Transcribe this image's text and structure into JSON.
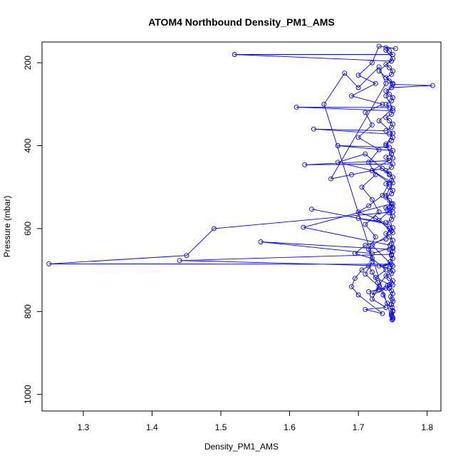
{
  "chart_data": {
    "type": "scatter",
    "title": "ATOM4 Northbound Density_PM1_AMS",
    "xlabel": "Density_PM1_AMS",
    "ylabel": "Pressure (mbar)",
    "xlim": [
      1.24,
      1.82
    ],
    "ylim": [
      1040,
      150
    ],
    "y_axis_inverted": true,
    "x_ticks": [
      "1.3",
      "1.4",
      "1.5",
      "1.6",
      "1.7",
      "1.8"
    ],
    "x_tick_values": [
      1.3,
      1.4,
      1.5,
      1.6,
      1.7,
      1.8
    ],
    "y_ticks": [
      "200",
      "400",
      "600",
      "800",
      "1000"
    ],
    "y_tick_values": [
      200,
      400,
      600,
      800,
      1000
    ],
    "grid": false,
    "style": "points connected by lines (type='o')",
    "series": [
      {
        "color": "#0000ff",
        "marker": "open-circle",
        "points": [
          [
            1.75,
            818
          ],
          [
            1.749,
            812
          ],
          [
            1.748,
            805
          ],
          [
            1.75,
            798
          ],
          [
            1.749,
            790
          ],
          [
            1.748,
            783
          ],
          [
            1.75,
            776
          ],
          [
            1.749,
            770
          ],
          [
            1.747,
            764
          ],
          [
            1.75,
            757
          ],
          [
            1.748,
            750
          ],
          [
            1.745,
            744
          ],
          [
            1.742,
            738
          ],
          [
            1.748,
            732
          ],
          [
            1.75,
            726
          ],
          [
            1.745,
            720
          ],
          [
            1.74,
            714
          ],
          [
            1.748,
            708
          ],
          [
            1.75,
            702
          ],
          [
            1.745,
            696
          ],
          [
            1.73,
            690
          ],
          [
            1.748,
            686
          ],
          [
            1.25,
            685
          ],
          [
            1.45,
            665
          ],
          [
            1.49,
            600
          ],
          [
            1.75,
            560
          ],
          [
            1.74,
            550
          ],
          [
            1.748,
            540
          ],
          [
            1.62,
            597
          ],
          [
            1.746,
            640
          ],
          [
            1.75,
            648
          ],
          [
            1.75,
            655
          ],
          [
            1.748,
            662
          ],
          [
            1.44,
            677
          ],
          [
            1.74,
            690
          ],
          [
            1.746,
            680
          ],
          [
            1.75,
            672
          ],
          [
            1.748,
            665
          ],
          [
            1.745,
            650
          ],
          [
            1.558,
            632
          ],
          [
            1.72,
            660
          ],
          [
            1.75,
            645
          ],
          [
            1.748,
            636
          ],
          [
            1.75,
            628
          ],
          [
            1.745,
            620
          ],
          [
            1.74,
            612
          ],
          [
            1.748,
            605
          ],
          [
            1.75,
            598
          ],
          [
            1.745,
            590
          ],
          [
            1.632,
            553
          ],
          [
            1.7,
            575
          ],
          [
            1.74,
            585
          ],
          [
            1.748,
            578
          ],
          [
            1.75,
            570
          ],
          [
            1.745,
            562
          ],
          [
            1.742,
            555
          ],
          [
            1.748,
            548
          ],
          [
            1.75,
            540
          ],
          [
            1.745,
            532
          ],
          [
            1.74,
            524
          ],
          [
            1.748,
            516
          ],
          [
            1.75,
            508
          ],
          [
            1.745,
            500
          ],
          [
            1.74,
            492
          ],
          [
            1.748,
            484
          ],
          [
            1.75,
            476
          ],
          [
            1.745,
            468
          ],
          [
            1.74,
            460
          ],
          [
            1.748,
            452
          ],
          [
            1.75,
            444
          ],
          [
            1.622,
            446
          ],
          [
            1.745,
            436
          ],
          [
            1.74,
            428
          ],
          [
            1.748,
            420
          ],
          [
            1.75,
            412
          ],
          [
            1.67,
            400
          ],
          [
            1.745,
            404
          ],
          [
            1.74,
            396
          ],
          [
            1.748,
            388
          ],
          [
            1.75,
            380
          ],
          [
            1.745,
            372
          ],
          [
            1.635,
            360
          ],
          [
            1.74,
            364
          ],
          [
            1.748,
            356
          ],
          [
            1.75,
            348
          ],
          [
            1.745,
            340
          ],
          [
            1.74,
            332
          ],
          [
            1.748,
            324
          ],
          [
            1.75,
            316
          ],
          [
            1.61,
            307
          ],
          [
            1.745,
            308
          ],
          [
            1.74,
            300
          ],
          [
            1.748,
            292
          ],
          [
            1.75,
            284
          ],
          [
            1.745,
            276
          ],
          [
            1.74,
            268
          ],
          [
            1.748,
            260
          ],
          [
            1.808,
            255
          ],
          [
            1.75,
            252
          ],
          [
            1.745,
            244
          ],
          [
            1.74,
            236
          ],
          [
            1.748,
            228
          ],
          [
            1.75,
            220
          ],
          [
            1.745,
            212
          ],
          [
            1.74,
            204
          ],
          [
            1.748,
            196
          ],
          [
            1.52,
            180
          ],
          [
            1.75,
            180
          ],
          [
            1.745,
            172
          ],
          [
            1.74,
            164
          ],
          [
            1.754,
            166
          ],
          [
            1.73,
            160
          ],
          [
            1.72,
            200
          ],
          [
            1.7,
            230
          ],
          [
            1.725,
            250
          ],
          [
            1.69,
            280
          ],
          [
            1.735,
            300
          ],
          [
            1.71,
            320
          ],
          [
            1.72,
            350
          ],
          [
            1.7,
            380
          ],
          [
            1.73,
            410
          ],
          [
            1.715,
            440
          ],
          [
            1.725,
            470
          ],
          [
            1.705,
            500
          ],
          [
            1.72,
            530
          ],
          [
            1.73,
            560
          ],
          [
            1.71,
            590
          ],
          [
            1.725,
            620
          ],
          [
            1.715,
            650
          ],
          [
            1.72,
            680
          ],
          [
            1.71,
            710
          ],
          [
            1.73,
            740
          ],
          [
            1.72,
            770
          ],
          [
            1.74,
            790
          ],
          [
            1.71,
            795
          ],
          [
            1.735,
            805
          ],
          [
            1.7,
            760
          ],
          [
            1.69,
            740
          ],
          [
            1.695,
            720
          ],
          [
            1.705,
            700
          ],
          [
            1.715,
            690
          ],
          [
            1.72,
            705
          ],
          [
            1.728,
            730
          ],
          [
            1.736,
            760
          ],
          [
            1.742,
            780
          ],
          [
            1.75,
            800
          ],
          [
            1.748,
            810
          ],
          [
            1.75,
            815
          ],
          [
            1.749,
            820
          ],
          [
            1.65,
            300
          ],
          [
            1.68,
            225
          ],
          [
            1.7,
            260
          ],
          [
            1.73,
            210
          ],
          [
            1.74,
            250
          ],
          [
            1.66,
            480
          ],
          [
            1.69,
            470
          ],
          [
            1.735,
            455
          ],
          [
            1.745,
            470
          ],
          [
            1.71,
            420
          ],
          [
            1.67,
            440
          ],
          [
            1.72,
            460
          ],
          [
            1.745,
            490
          ],
          [
            1.735,
            520
          ],
          [
            1.715,
            545
          ],
          [
            1.7,
            560
          ],
          [
            1.725,
            575
          ],
          [
            1.745,
            600
          ],
          [
            1.74,
            625
          ],
          [
            1.71,
            640
          ],
          [
            1.695,
            660
          ],
          [
            1.72,
            672
          ],
          [
            1.74,
            700
          ],
          [
            1.725,
            718
          ],
          [
            1.745,
            735
          ],
          [
            1.73,
            748
          ],
          [
            1.715,
            752
          ],
          [
            1.74,
            744
          ],
          [
            1.75,
            736
          ],
          [
            1.72,
            760
          ],
          [
            1.75,
            690
          ],
          [
            1.72,
            640
          ],
          [
            1.75,
            610
          ],
          [
            1.73,
            580
          ],
          [
            1.75,
            550
          ],
          [
            1.74,
            520
          ],
          [
            1.75,
            490
          ],
          [
            1.72,
            460
          ],
          [
            1.75,
            430
          ],
          [
            1.74,
            400
          ],
          [
            1.75,
            370
          ],
          [
            1.73,
            340
          ],
          [
            1.75,
            310
          ],
          [
            1.74,
            280
          ],
          [
            1.75,
            250
          ],
          [
            1.73,
            220
          ],
          [
            1.75,
            190
          ],
          [
            1.74,
            170
          ]
        ]
      }
    ]
  }
}
